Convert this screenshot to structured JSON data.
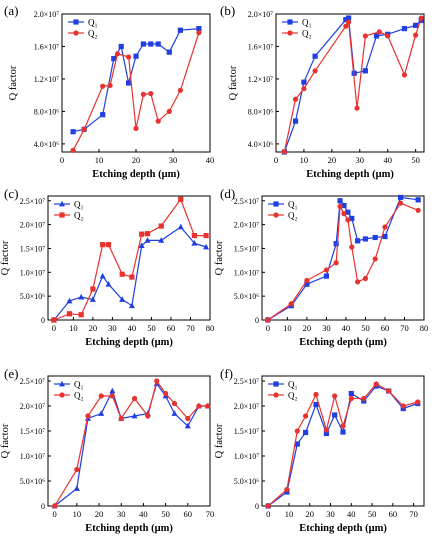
{
  "chart_data": [
    {
      "panel": "(a)",
      "type": "line",
      "xlabel": "Etching depth (μm)",
      "ylabel": "Q factor",
      "xlim": [
        0,
        40
      ],
      "xticks": [
        0,
        10,
        20,
        30,
        40
      ],
      "ylim": [
        3000000,
        20000000
      ],
      "yticks": [
        4000000,
        8000000,
        12000000,
        16000000,
        20000000
      ],
      "ytick_labels": [
        "4.0×10⁶",
        "8.0×10⁶",
        "1.2×10⁷",
        "1.6×10⁷",
        "2.0×10⁷"
      ],
      "legend": "top-left",
      "series": [
        {
          "name": "Q₁",
          "color": "#1f3fe0",
          "marker": "square",
          "x": [
            3,
            6,
            11,
            14,
            16,
            18,
            20,
            22,
            24,
            26,
            29,
            32,
            37
          ],
          "y": [
            5500000,
            5800000,
            7600000,
            14500000,
            16000000,
            11500000,
            14800000,
            16300000,
            16300000,
            16300000,
            15300000,
            18000000,
            18200000
          ]
        },
        {
          "name": "Q₂",
          "color": "#e8322f",
          "marker": "circle",
          "x": [
            3,
            6,
            11,
            13,
            15,
            18,
            20,
            22,
            24,
            26,
            29,
            32,
            37
          ],
          "y": [
            3200000,
            5800000,
            11100000,
            11200000,
            15100000,
            14700000,
            5900000,
            10100000,
            10200000,
            6800000,
            8000000,
            10600000,
            17700000
          ]
        }
      ]
    },
    {
      "panel": "(b)",
      "type": "line",
      "xlabel": "Etching depth (μm)",
      "ylabel": "Q factor",
      "xlim": [
        0,
        53
      ],
      "xticks": [
        0,
        10,
        20,
        30,
        40,
        50
      ],
      "ylim": [
        3000000,
        20000000
      ],
      "yticks": [
        4000000,
        8000000,
        12000000,
        16000000,
        20000000
      ],
      "ytick_labels": [
        "4.0×10⁶",
        "8.0×10⁶",
        "1.2×10⁷",
        "1.6×10⁷",
        "2.0×10⁷"
      ],
      "legend": "top-left",
      "series": [
        {
          "name": "Q₁",
          "color": "#1f3fe0",
          "marker": "square",
          "x": [
            3,
            7,
            10,
            14,
            25,
            26,
            28,
            32,
            36,
            40,
            46,
            50,
            52
          ],
          "y": [
            3000000,
            6800000,
            11600000,
            14800000,
            19300000,
            19500000,
            12700000,
            13000000,
            17300000,
            17500000,
            18200000,
            18600000,
            19200000
          ]
        },
        {
          "name": "Q₂",
          "color": "#e8322f",
          "marker": "circle",
          "x": [
            3,
            7,
            10,
            14,
            25,
            26,
            29,
            32,
            37,
            40,
            46,
            50,
            52
          ],
          "y": [
            3000000,
            9500000,
            10800000,
            13000000,
            18500000,
            19000000,
            8400000,
            17300000,
            17800000,
            17300000,
            12500000,
            17400000,
            19500000
          ]
        }
      ]
    },
    {
      "panel": "(c)",
      "type": "line",
      "xlabel": "Etching depth (μm)",
      "ylabel": "Q factor",
      "xlim": [
        -3,
        80
      ],
      "xticks": [
        0,
        10,
        20,
        30,
        40,
        50,
        60,
        70,
        80
      ],
      "ylim": [
        0,
        26000000
      ],
      "yticks": [
        0,
        5000000,
        10000000,
        15000000,
        20000000,
        25000000
      ],
      "ytick_labels": [
        "0",
        "5.0×10⁶",
        "1.0×10⁷",
        "1.5×10⁷",
        "2.0×10⁷",
        "2.5×10⁷"
      ],
      "legend": "top-left",
      "series": [
        {
          "name": "Q₁",
          "color": "#1f3fe0",
          "marker": "triangle",
          "x": [
            0,
            8,
            14,
            20,
            25,
            28,
            35,
            40,
            45,
            48,
            55,
            65,
            72,
            78
          ],
          "y": [
            0,
            4000000,
            4800000,
            4300000,
            9200000,
            7500000,
            4300000,
            3000000,
            15600000,
            16700000,
            16700000,
            19500000,
            16100000,
            15300000
          ]
        },
        {
          "name": "Q₂",
          "color": "#e8322f",
          "marker": "square",
          "x": [
            0,
            8,
            14,
            20,
            25,
            28,
            35,
            40,
            45,
            48,
            55,
            65,
            72,
            78
          ],
          "y": [
            0,
            1300000,
            1100000,
            6500000,
            15800000,
            15800000,
            9600000,
            9000000,
            18000000,
            18100000,
            19700000,
            25300000,
            17700000,
            17700000
          ]
        }
      ]
    },
    {
      "panel": "(d)",
      "type": "line",
      "xlabel": "Etching depth (μm)",
      "ylabel": "Q factor",
      "xlim": [
        -3,
        80
      ],
      "xticks": [
        0,
        10,
        20,
        30,
        40,
        50,
        60,
        70,
        80
      ],
      "ylim": [
        0,
        26000000
      ],
      "yticks": [
        0,
        5000000,
        10000000,
        15000000,
        20000000,
        25000000
      ],
      "ytick_labels": [
        "0",
        "5.0×10⁶",
        "1.0×10⁷",
        "1.5×10⁷",
        "2.0×10⁷",
        "2.5×10⁷"
      ],
      "legend": "top-left",
      "series": [
        {
          "name": "Q₁",
          "color": "#1f3fe0",
          "marker": "square",
          "x": [
            0,
            12,
            20,
            30,
            35,
            37,
            39,
            41,
            43,
            46,
            50,
            55,
            60,
            68,
            77
          ],
          "y": [
            0,
            3000000,
            7500000,
            9200000,
            16000000,
            25000000,
            24000000,
            22600000,
            21300000,
            16600000,
            17000000,
            17300000,
            17500000,
            25700000,
            25200000
          ]
        },
        {
          "name": "Q₂",
          "color": "#e8322f",
          "marker": "circle",
          "x": [
            0,
            12,
            20,
            30,
            35,
            37,
            39,
            41,
            43,
            46,
            50,
            55,
            60,
            68,
            77
          ],
          "y": [
            0,
            3400000,
            8300000,
            10500000,
            12000000,
            23800000,
            22300000,
            21000000,
            15300000,
            8000000,
            8700000,
            12800000,
            19500000,
            24500000,
            23000000
          ]
        }
      ]
    },
    {
      "panel": "(e)",
      "type": "line",
      "xlabel": "Etching depth (μm)",
      "ylabel": "Q factor",
      "xlim": [
        -3,
        70
      ],
      "xticks": [
        0,
        10,
        20,
        30,
        40,
        50,
        60,
        70
      ],
      "ylim": [
        0,
        26000000
      ],
      "yticks": [
        0,
        5000000,
        10000000,
        15000000,
        20000000,
        25000000
      ],
      "ytick_labels": [
        "0",
        "5.0×10⁶",
        "1.0×10⁷",
        "1.5×10⁷",
        "2.0×10⁷",
        "2.5×10⁷"
      ],
      "legend": "top-left",
      "series": [
        {
          "name": "Q₁",
          "color": "#1f3fe0",
          "marker": "triangle",
          "x": [
            0,
            10,
            15,
            21,
            26,
            30,
            36,
            42,
            46,
            50,
            54,
            60,
            65,
            69
          ],
          "y": [
            0,
            3500000,
            17500000,
            18500000,
            23000000,
            17500000,
            18000000,
            18500000,
            24500000,
            22000000,
            18500000,
            16000000,
            20000000,
            20000000
          ]
        },
        {
          "name": "Q₂",
          "color": "#e8322f",
          "marker": "circle",
          "x": [
            0,
            10,
            15,
            21,
            26,
            30,
            36,
            42,
            46,
            50,
            54,
            60,
            65,
            69
          ],
          "y": [
            0,
            7300000,
            18000000,
            22000000,
            22000000,
            17500000,
            21500000,
            18000000,
            25000000,
            22500000,
            20500000,
            17500000,
            20000000,
            20000000
          ]
        }
      ]
    },
    {
      "panel": "(f)",
      "type": "line",
      "xlabel": "Etching depth (μm)",
      "ylabel": "Q factor",
      "xlim": [
        -3,
        75
      ],
      "xticks": [
        0,
        10,
        20,
        30,
        40,
        50,
        60,
        70
      ],
      "ylim": [
        0,
        26000000
      ],
      "yticks": [
        0,
        5000000,
        10000000,
        15000000,
        20000000,
        25000000
      ],
      "ytick_labels": [
        "0",
        "5.0×10⁶",
        "1.0×10⁷",
        "1.5×10⁷",
        "2.0×10⁷",
        "2.5×10⁷"
      ],
      "legend": "top-left",
      "series": [
        {
          "name": "Q₁",
          "color": "#1f3fe0",
          "marker": "square",
          "x": [
            0,
            9,
            14,
            18,
            23,
            28,
            32,
            36,
            40,
            46,
            52,
            58,
            65,
            72
          ],
          "y": [
            0,
            2800000,
            12400000,
            14700000,
            20300000,
            14500000,
            18200000,
            14800000,
            22500000,
            21000000,
            24000000,
            23000000,
            19500000,
            20500000
          ]
        },
        {
          "name": "Q₂",
          "color": "#e8322f",
          "marker": "circle",
          "x": [
            0,
            9,
            14,
            18,
            23,
            28,
            32,
            36,
            40,
            46,
            52,
            58,
            65,
            72
          ],
          "y": [
            0,
            3300000,
            15000000,
            18000000,
            22300000,
            15200000,
            22000000,
            16000000,
            21500000,
            21500000,
            24400000,
            23000000,
            20000000,
            20800000
          ]
        }
      ]
    }
  ]
}
